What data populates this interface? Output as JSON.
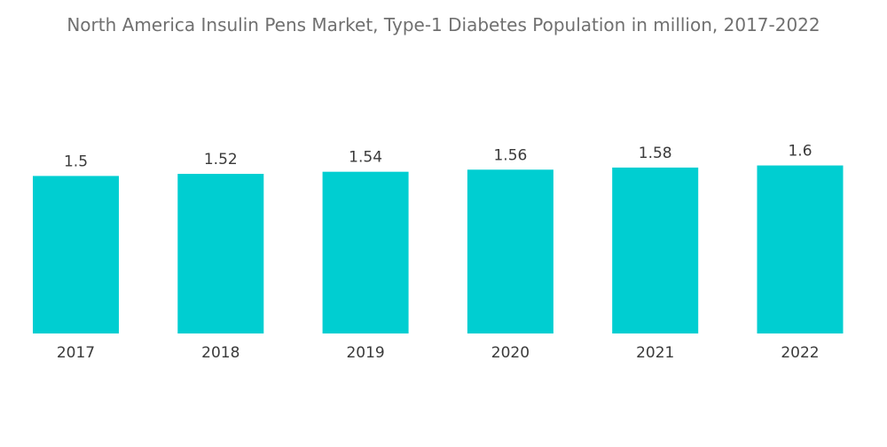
{
  "chart_data": {
    "type": "bar",
    "title": "North America Insulin Pens Market, Type-1 Diabetes Population in million, 2017-2022",
    "categories": [
      "2017",
      "2018",
      "2019",
      "2020",
      "2021",
      "2022"
    ],
    "values": [
      1.5,
      1.52,
      1.54,
      1.56,
      1.58,
      1.6
    ],
    "value_labels": [
      "1.5",
      "1.52",
      "1.54",
      "1.56",
      "1.58",
      "1.6"
    ],
    "xlabel": "",
    "ylabel": "",
    "grid": false,
    "legend": "none",
    "bar_color": "#00CED1"
  }
}
